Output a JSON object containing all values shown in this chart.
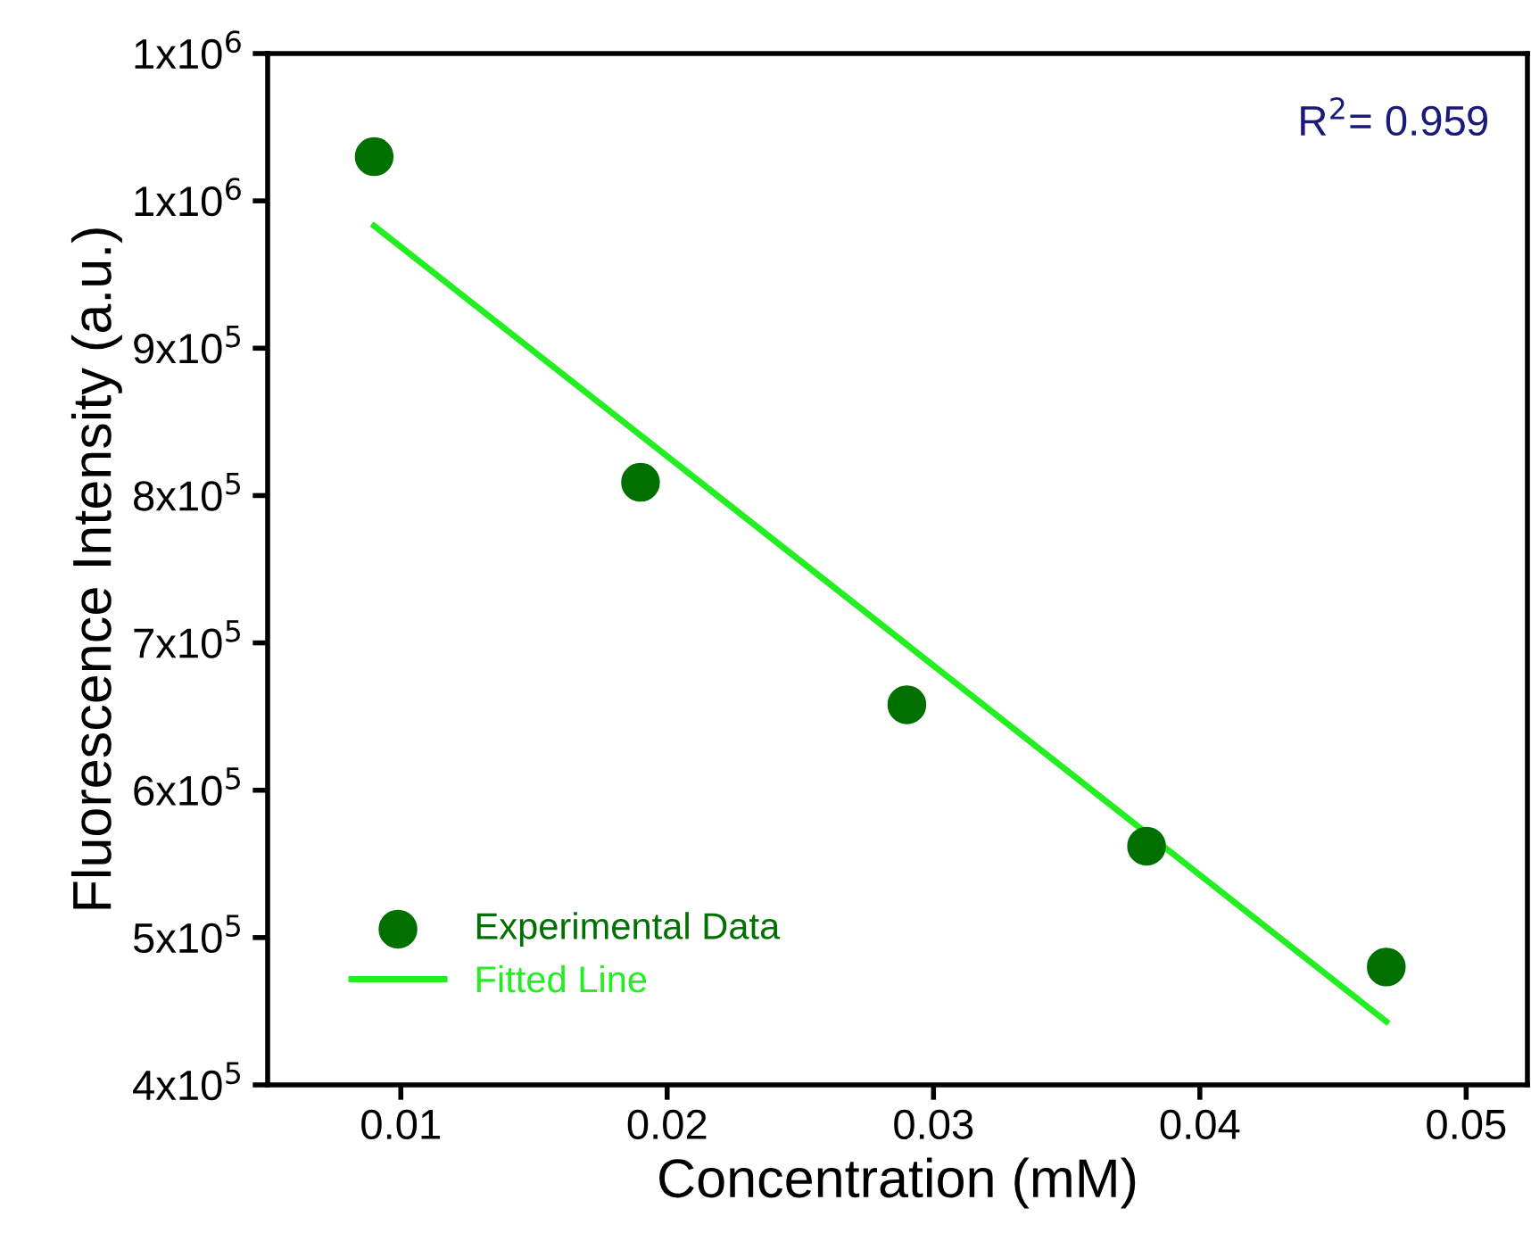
{
  "chart_data": {
    "type": "scatter",
    "xlabel": "Concentration (mM)",
    "ylabel": "Fluorescence Intensity (a.u.)",
    "xlim": [
      0.005,
      0.0523
    ],
    "xticks": [
      0.01,
      0.02,
      0.03,
      0.04,
      0.05
    ],
    "ylim": [
      400000,
      1100000
    ],
    "yticks": [
      {
        "value": 400000,
        "label": "4x10$^{5}$"
      },
      {
        "value": 500000,
        "label": "5x10$^{5}$"
      },
      {
        "value": 600000,
        "label": "6x10$^{5}$"
      },
      {
        "value": 700000,
        "label": "7x10$^{5}$"
      },
      {
        "value": 800000,
        "label": "8x10$^{5}$"
      },
      {
        "value": 900000,
        "label": "9x10$^{5}$"
      },
      {
        "value": 1000000,
        "label": "1x10$^{6}$"
      },
      {
        "value": 1100000,
        "label": "1x10$^{6}$"
      }
    ],
    "series": [
      {
        "name": "Experimental Data",
        "marker": "circle",
        "color": "#007000",
        "x": [
          0.009,
          0.019,
          0.029,
          0.038,
          0.047
        ],
        "values": [
          1030000,
          809000,
          658000,
          562000,
          480000
        ]
      },
      {
        "name": "Fitted Line",
        "type": "line",
        "marker": "none",
        "line_style": "solid",
        "color": "#22ee22",
        "x": [
          0.009,
          0.047
        ],
        "values": [
          983000,
          443000
        ]
      }
    ],
    "annotations": [
      {
        "text": "R$^{2}$= 0.959"
      }
    ],
    "legend": "bottom left",
    "grid": false
  }
}
